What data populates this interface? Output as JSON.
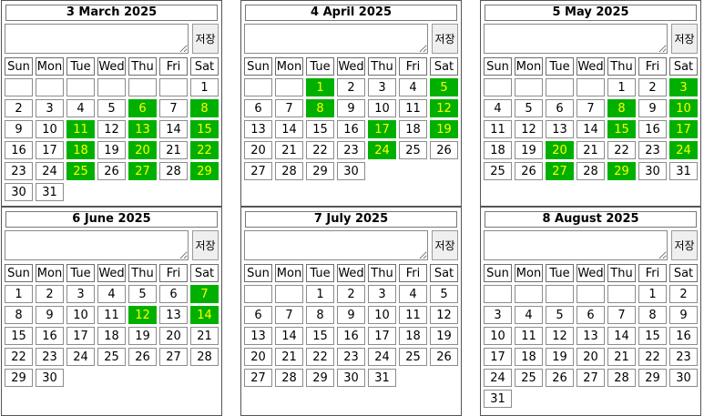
{
  "save_label": "저장",
  "weekdays": [
    "Sun",
    "Mon",
    "Tue",
    "Wed",
    "Thu",
    "Fri",
    "Sat"
  ],
  "highlight_color": "#00b000",
  "highlight_text_color": "#ffff00",
  "months": [
    {
      "title": "3 March 2025",
      "first_weekday": 6,
      "days": 31,
      "highlighted": [
        6,
        8,
        11,
        13,
        15,
        18,
        20,
        22,
        25,
        27,
        29
      ]
    },
    {
      "title": "4 April 2025",
      "first_weekday": 2,
      "days": 30,
      "highlighted": [
        1,
        5,
        8,
        12,
        17,
        19,
        24
      ]
    },
    {
      "title": "5 May 2025",
      "first_weekday": 4,
      "days": 31,
      "highlighted": [
        3,
        8,
        10,
        15,
        17,
        20,
        24,
        27,
        29
      ]
    },
    {
      "title": "6 June 2025",
      "first_weekday": 0,
      "days": 30,
      "highlighted": [
        7,
        12,
        14
      ]
    },
    {
      "title": "7 July 2025",
      "first_weekday": 2,
      "days": 31,
      "highlighted": []
    },
    {
      "title": "8 August 2025",
      "first_weekday": 5,
      "days": 31,
      "highlighted": []
    }
  ]
}
